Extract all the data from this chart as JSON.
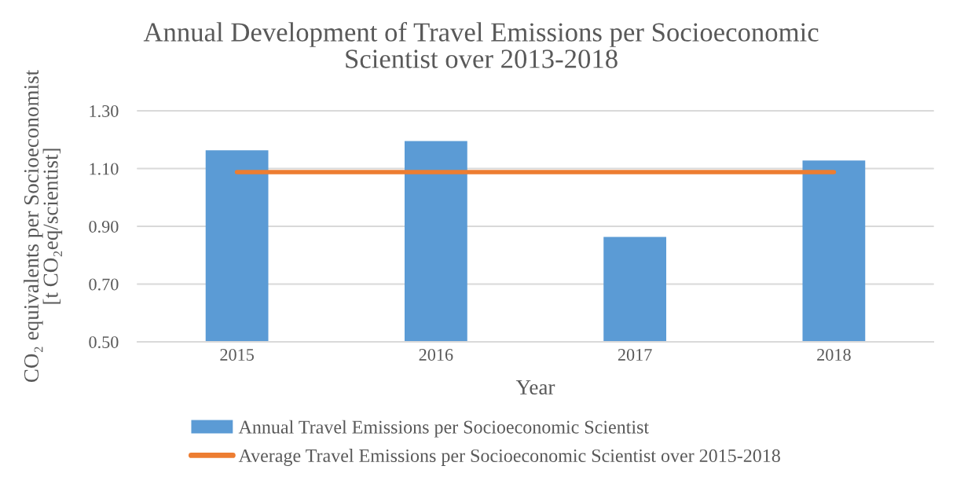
{
  "chart_data": {
    "type": "bar",
    "title": "Annual Development of Travel Emissions per Socioeconomic\nScientist over 2013-2018",
    "xlabel": "Year",
    "ylabel": "CO₂ equivalents per Socioeconomist\n[t CO₂eq/scientist]",
    "categories": [
      "2015",
      "2016",
      "2017",
      "2018"
    ],
    "series": [
      {
        "name": "Annual Travel Emissions per Socioeconomic Scientist",
        "color": "#5b9bd5",
        "values": [
          1.163,
          1.195,
          0.863,
          1.128
        ]
      },
      {
        "name": "Average Travel Emissions per Socioeconomic Scientist over 2015-2018",
        "type": "line",
        "color": "#ed7d31",
        "values": [
          1.088,
          1.088,
          1.088,
          1.088
        ]
      }
    ],
    "ylim": [
      0.5,
      1.3
    ],
    "yticks": [
      {
        "value": 0.5,
        "label": "0.50"
      },
      {
        "value": 0.7,
        "label": "0.70"
      },
      {
        "value": 0.9,
        "label": "0.90"
      },
      {
        "value": 1.1,
        "label": "1.10"
      },
      {
        "value": 1.3,
        "label": "1.30"
      }
    ],
    "grid": "y",
    "legend": "bottom"
  }
}
